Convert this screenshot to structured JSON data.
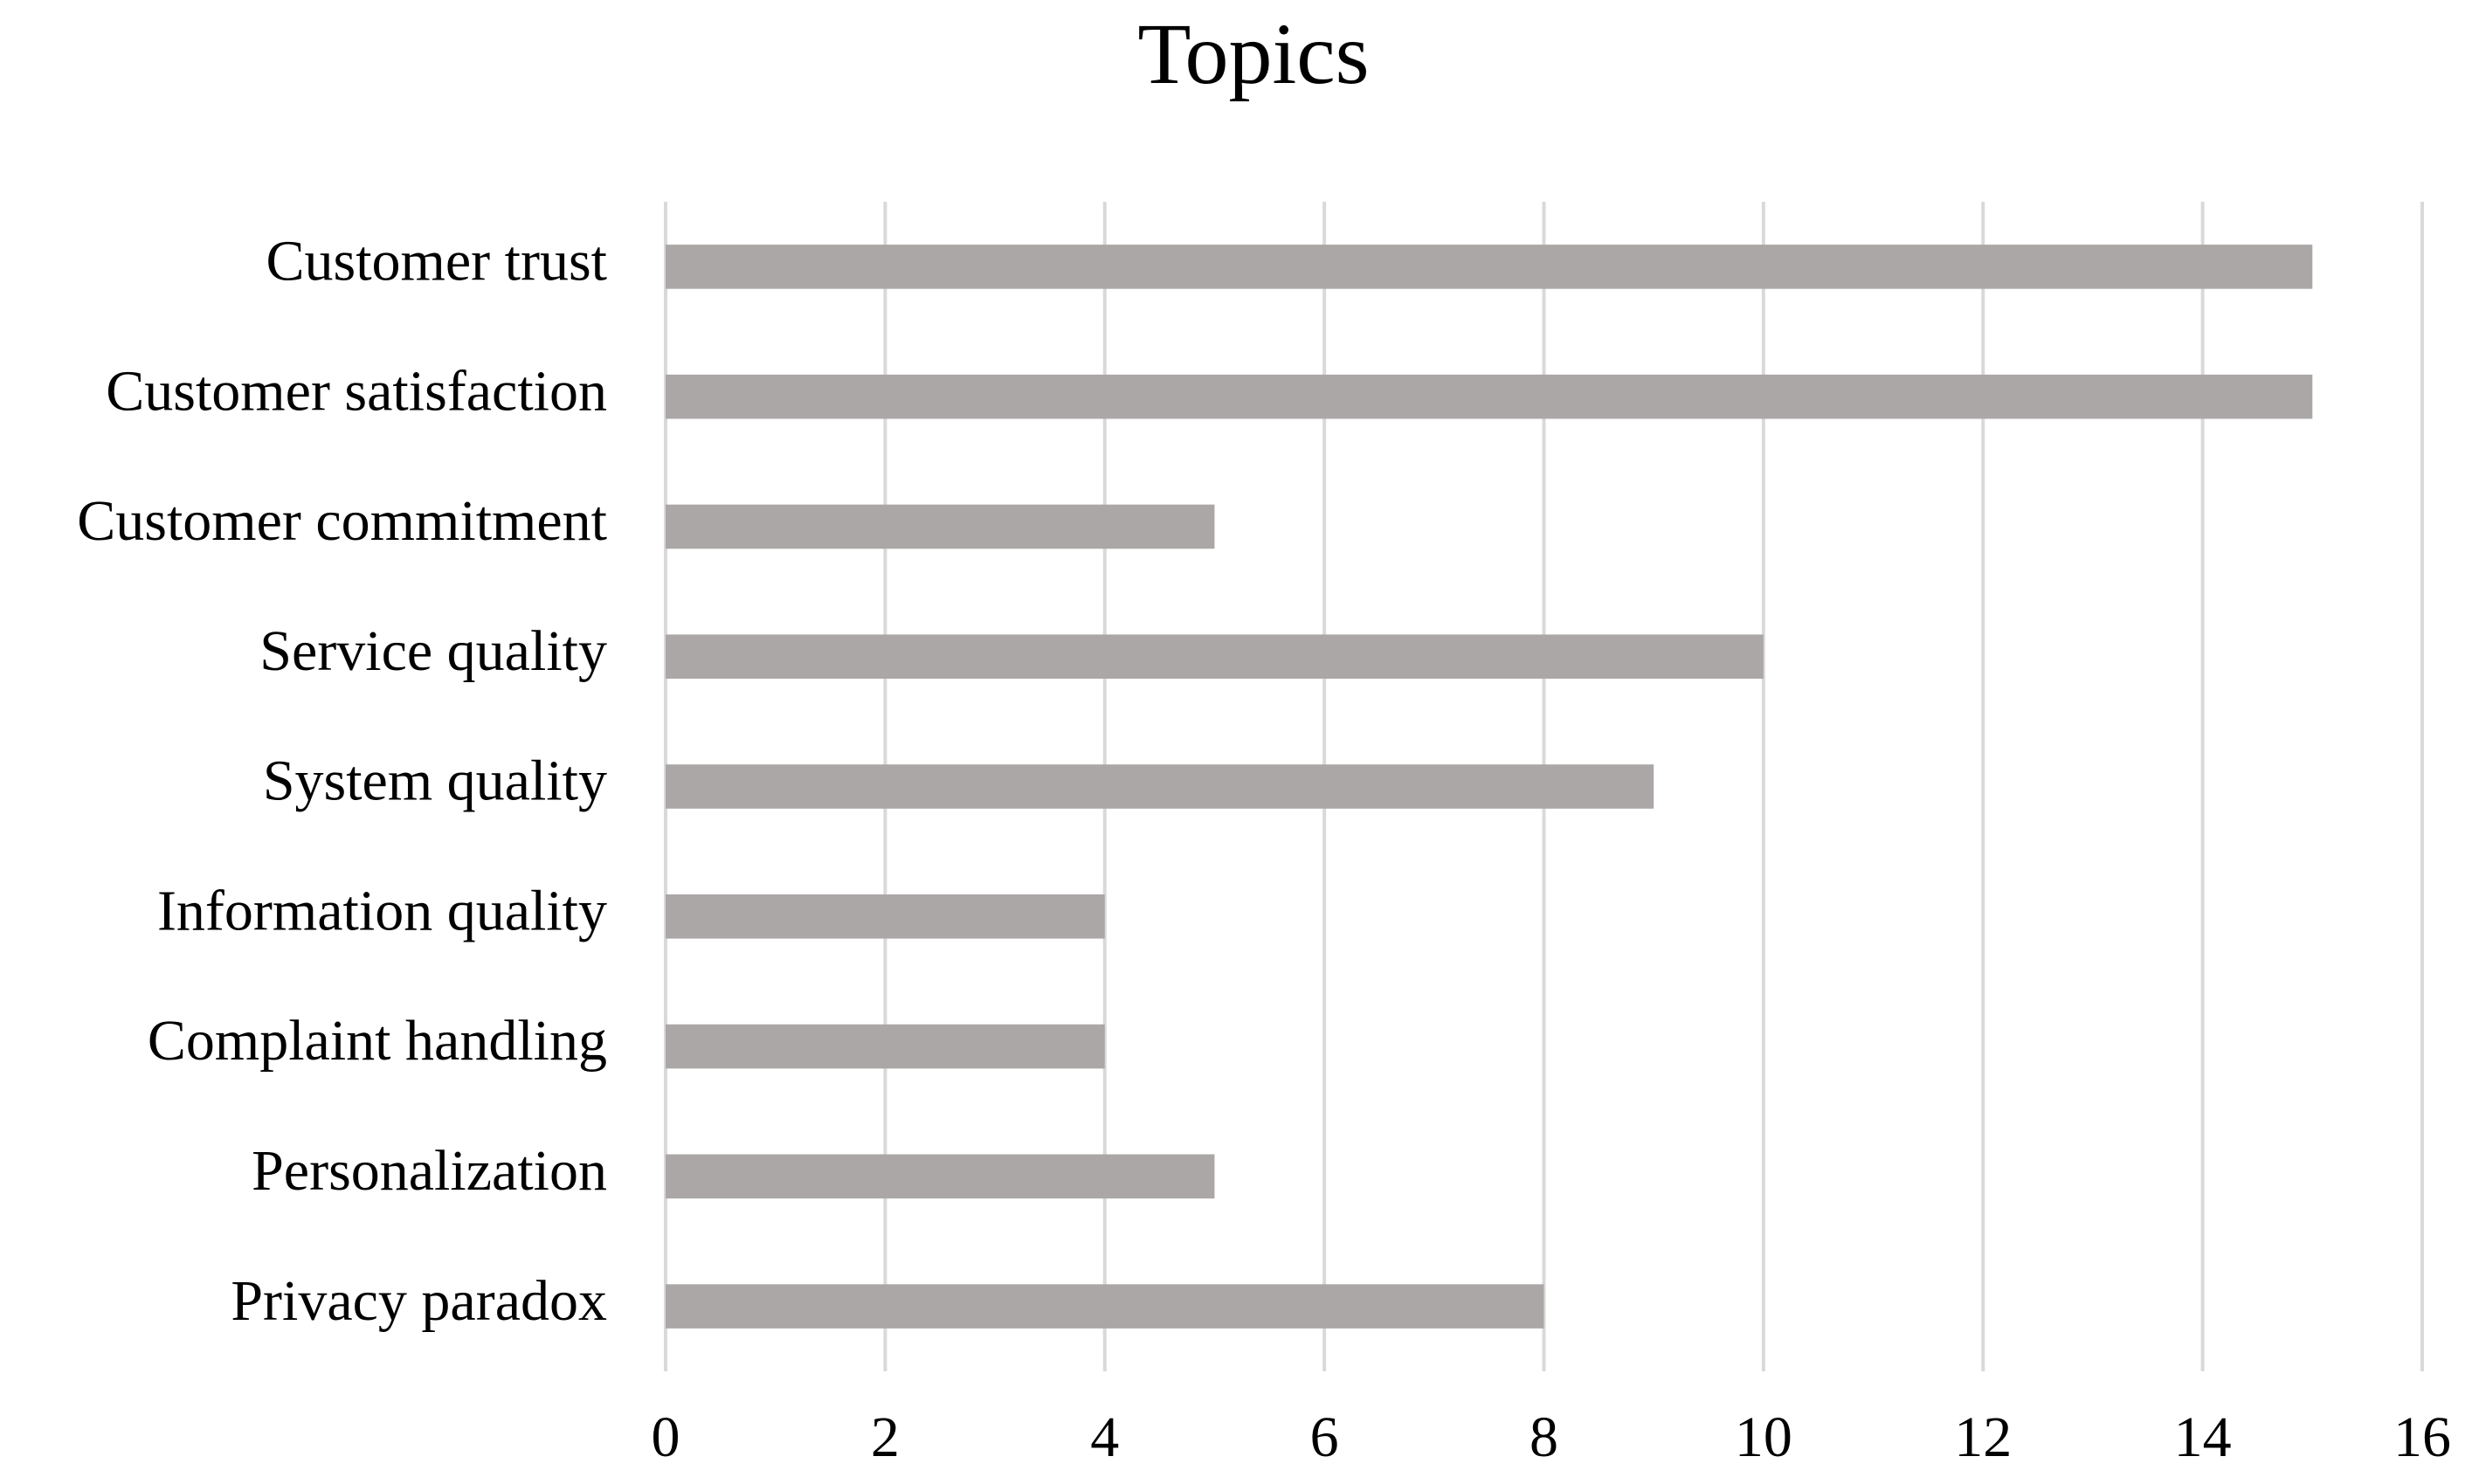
{
  "chart_data": {
    "type": "bar",
    "orientation": "horizontal",
    "title": "Topics",
    "categories": [
      "Customer trust",
      "Customer satisfaction",
      "Customer commitment",
      "Service quality",
      "System quality",
      "Information quality",
      "Complaint handling",
      "Personalization",
      "Privacy paradox"
    ],
    "values": [
      15,
      15,
      5,
      10,
      9,
      4,
      4,
      5,
      8
    ],
    "color": "#aba7a6",
    "xlim": [
      0,
      16
    ],
    "xticks": [
      0,
      2,
      4,
      6,
      8,
      10,
      12,
      14,
      16
    ],
    "grid": true
  }
}
